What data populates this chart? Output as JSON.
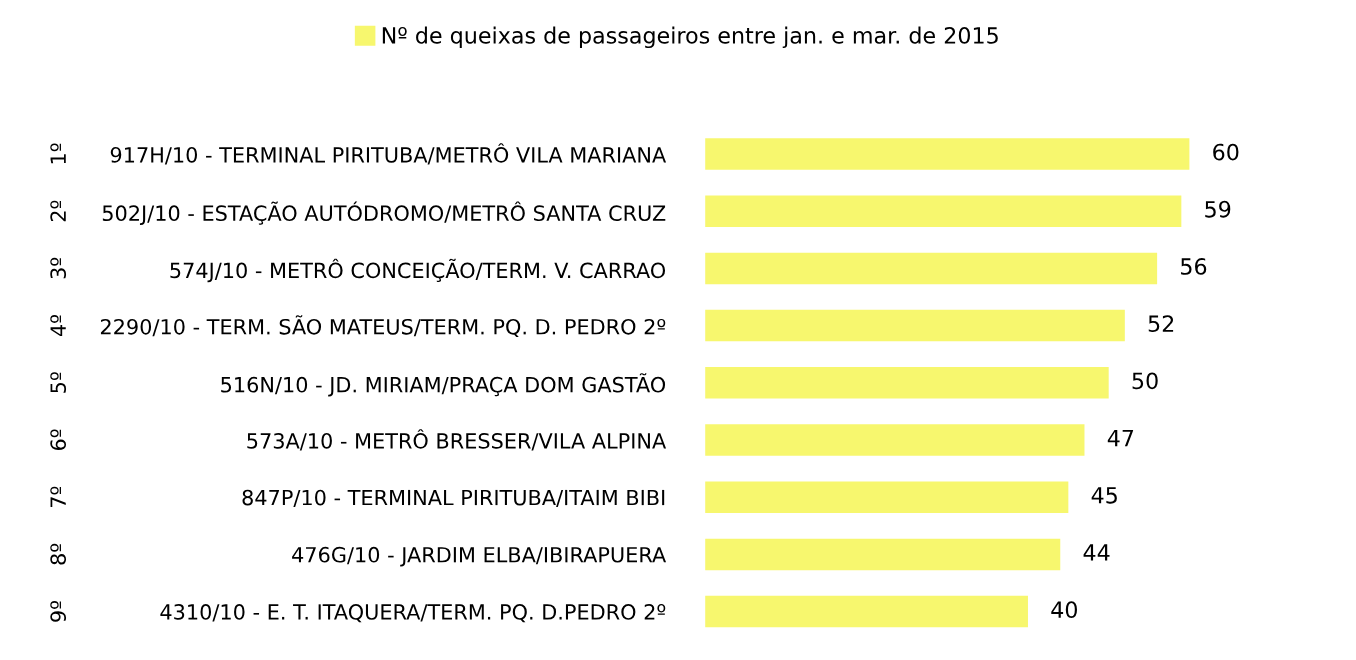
{
  "chart_data": {
    "type": "bar",
    "orientation": "horizontal",
    "categories": [
      "917H/10 - TERMINAL PIRITUBA/METRÔ VILA MARIANA",
      "502J/10 - ESTAÇÃO AUTÓDROMO/METRÔ SANTA CRUZ",
      "574J/10 - METRÔ CONCEIÇÃO/TERM. V. CARRAO",
      "2290/10 - TERM. SÃO MATEUS/TERM. PQ. D. PEDRO 2º",
      "516N/10 - JD. MIRIAM/PRAÇA DOM GASTÃO",
      "573A/10 - METRÔ BRESSER/VILA ALPINA",
      "847P/10 - TERMINAL PIRITUBA/ITAIM BIBI",
      "476G/10 - JARDIM ELBA/IBIRAPUERA",
      "4310/10 - E. T. ITAQUERA/TERM. PQ. D.PEDRO 2º"
    ],
    "series": [
      {
        "name": "Nº de queixas de passageiros entre jan. e mar. de 2015",
        "color": "#f7f76e",
        "values": [
          60,
          59,
          56,
          52,
          50,
          47,
          45,
          44,
          40
        ]
      }
    ],
    "annotations": [
      "1º",
      "2º",
      "3º",
      "4º",
      "5º",
      "6º",
      "7º",
      "8º",
      "9º"
    ],
    "data_labels": true,
    "legend": "top",
    "tick_labels": "y",
    "grid": false
  }
}
